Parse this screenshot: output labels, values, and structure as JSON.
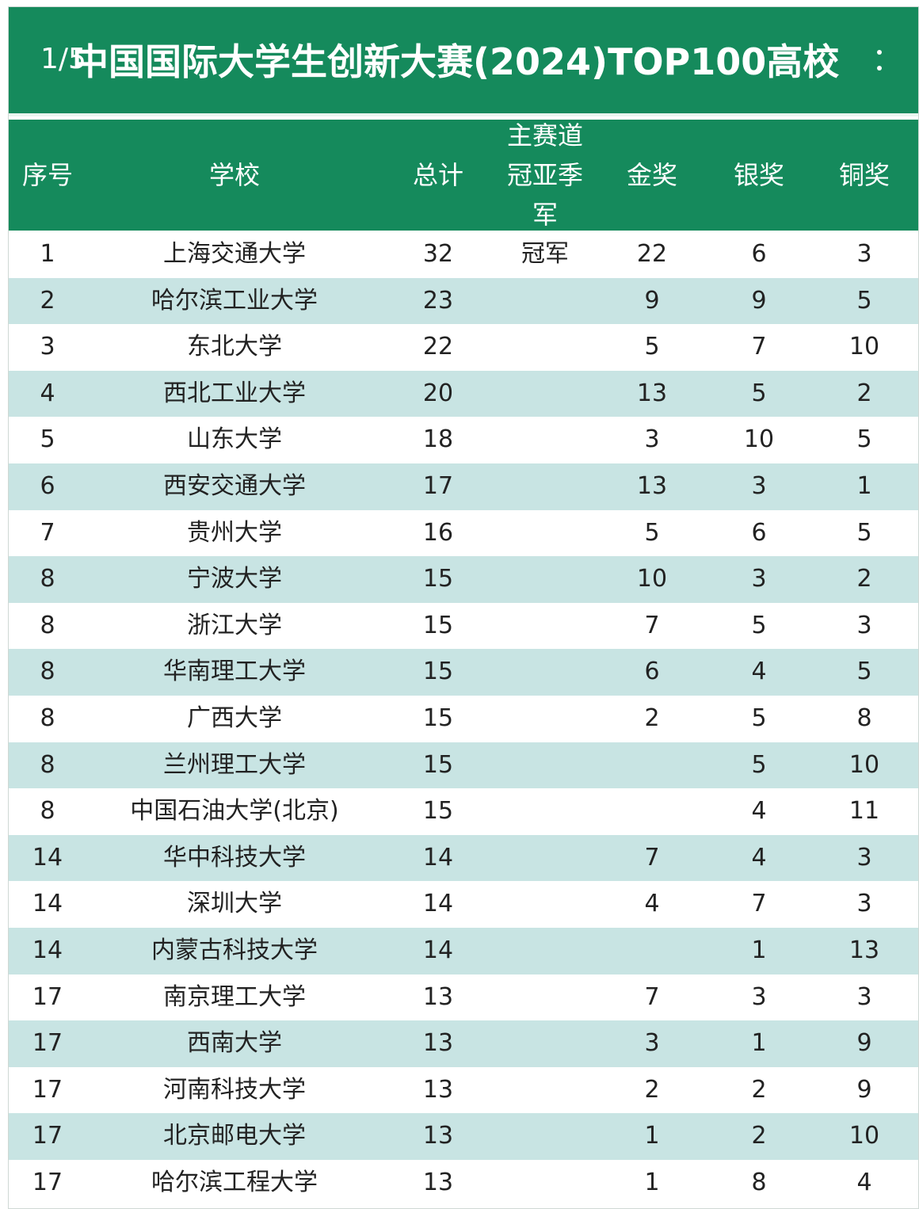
{
  "page_indicator": "1/5",
  "title": "中国国际大学生创新大赛(2024)TOP100高校",
  "columns": {
    "rank": "序号",
    "school": "学校",
    "total": "总计",
    "champion_lines": [
      "主赛道",
      "冠亚季",
      "军"
    ],
    "gold": "金奖",
    "silver": "银奖",
    "bronze": "铜奖"
  },
  "rows": [
    {
      "rank": "1",
      "school": "上海交通大学",
      "total": "32",
      "champion": "冠军",
      "gold": "22",
      "silver": "6",
      "bronze": "3"
    },
    {
      "rank": "2",
      "school": "哈尔滨工业大学",
      "total": "23",
      "champion": "",
      "gold": "9",
      "silver": "9",
      "bronze": "5"
    },
    {
      "rank": "3",
      "school": "东北大学",
      "total": "22",
      "champion": "",
      "gold": "5",
      "silver": "7",
      "bronze": "10"
    },
    {
      "rank": "4",
      "school": "西北工业大学",
      "total": "20",
      "champion": "",
      "gold": "13",
      "silver": "5",
      "bronze": "2"
    },
    {
      "rank": "5",
      "school": "山东大学",
      "total": "18",
      "champion": "",
      "gold": "3",
      "silver": "10",
      "bronze": "5"
    },
    {
      "rank": "6",
      "school": "西安交通大学",
      "total": "17",
      "champion": "",
      "gold": "13",
      "silver": "3",
      "bronze": "1"
    },
    {
      "rank": "7",
      "school": "贵州大学",
      "total": "16",
      "champion": "",
      "gold": "5",
      "silver": "6",
      "bronze": "5"
    },
    {
      "rank": "8",
      "school": "宁波大学",
      "total": "15",
      "champion": "",
      "gold": "10",
      "silver": "3",
      "bronze": "2"
    },
    {
      "rank": "8",
      "school": "浙江大学",
      "total": "15",
      "champion": "",
      "gold": "7",
      "silver": "5",
      "bronze": "3"
    },
    {
      "rank": "8",
      "school": "华南理工大学",
      "total": "15",
      "champion": "",
      "gold": "6",
      "silver": "4",
      "bronze": "5"
    },
    {
      "rank": "8",
      "school": "广西大学",
      "total": "15",
      "champion": "",
      "gold": "2",
      "silver": "5",
      "bronze": "8"
    },
    {
      "rank": "8",
      "school": "兰州理工大学",
      "total": "15",
      "champion": "",
      "gold": "",
      "silver": "5",
      "bronze": "10"
    },
    {
      "rank": "8",
      "school": "中国石油大学(北京)",
      "total": "15",
      "champion": "",
      "gold": "",
      "silver": "4",
      "bronze": "11"
    },
    {
      "rank": "14",
      "school": "华中科技大学",
      "total": "14",
      "champion": "",
      "gold": "7",
      "silver": "4",
      "bronze": "3"
    },
    {
      "rank": "14",
      "school": "深圳大学",
      "total": "14",
      "champion": "",
      "gold": "4",
      "silver": "7",
      "bronze": "3"
    },
    {
      "rank": "14",
      "school": "内蒙古科技大学",
      "total": "14",
      "champion": "",
      "gold": "",
      "silver": "1",
      "bronze": "13"
    },
    {
      "rank": "17",
      "school": "南京理工大学",
      "total": "13",
      "champion": "",
      "gold": "7",
      "silver": "3",
      "bronze": "3"
    },
    {
      "rank": "17",
      "school": "西南大学",
      "total": "13",
      "champion": "",
      "gold": "3",
      "silver": "1",
      "bronze": "9"
    },
    {
      "rank": "17",
      "school": "河南科技大学",
      "total": "13",
      "champion": "",
      "gold": "2",
      "silver": "2",
      "bronze": "9"
    },
    {
      "rank": "17",
      "school": "北京邮电大学",
      "total": "13",
      "champion": "",
      "gold": "1",
      "silver": "2",
      "bronze": "10"
    },
    {
      "rank": "17",
      "school": "哈尔滨工程大学",
      "total": "13",
      "champion": "",
      "gold": "1",
      "silver": "8",
      "bronze": "4"
    }
  ],
  "colors": {
    "header_green": "#158a5c",
    "row_alt": "#c8e4e3",
    "row_plain": "#ffffff",
    "text": "#222222"
  }
}
